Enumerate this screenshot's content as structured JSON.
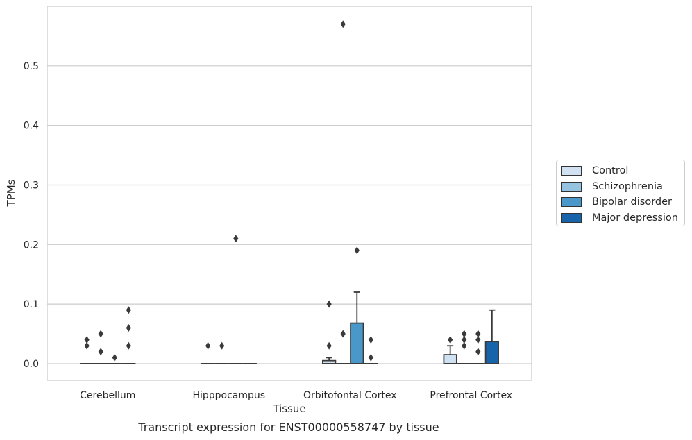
{
  "chart_data": {
    "type": "box",
    "caption": "Transcript expression for ENST00000558747 by tissue",
    "xlabel": "Tissue",
    "ylabel": "TPMs",
    "ylim": [
      -0.028,
      0.6
    ],
    "yticks": [
      "0.0",
      "0.1",
      "0.2",
      "0.3",
      "0.4",
      "0.5"
    ],
    "categories": [
      "Cerebellum",
      "Hipppocampus",
      "Orbitofontal Cortex",
      "Prefrontal Cortex"
    ],
    "grid": "horizontal",
    "legend_position": "right",
    "series": [
      {
        "name": "Control",
        "color": "#d0e1f2"
      },
      {
        "name": "Schizophrenia",
        "color": "#94c4df"
      },
      {
        "name": "Bipolar disorder",
        "color": "#4a98c9"
      },
      {
        "name": "Major depression",
        "color": "#1764ab"
      }
    ],
    "boxes": [
      [
        {
          "q1": 0,
          "median": 0,
          "q3": 0,
          "whisker_low": 0,
          "whisker_high": 0,
          "outliers": [
            0.03,
            0.04
          ]
        },
        {
          "q1": 0,
          "median": 0,
          "q3": 0,
          "whisker_low": 0,
          "whisker_high": 0,
          "outliers": [
            0.02,
            0.05
          ]
        },
        {
          "q1": 0,
          "median": 0,
          "q3": 0,
          "whisker_low": 0,
          "whisker_high": 0,
          "outliers": [
            0.01
          ]
        },
        {
          "q1": 0,
          "median": 0,
          "q3": 0,
          "whisker_low": 0,
          "whisker_high": 0,
          "outliers": [
            0.03,
            0.06,
            0.09
          ]
        }
      ],
      [
        {
          "q1": 0,
          "median": 0,
          "q3": 0,
          "whisker_low": 0,
          "whisker_high": 0,
          "outliers": [
            0.03
          ]
        },
        {
          "q1": 0,
          "median": 0,
          "q3": 0,
          "whisker_low": 0,
          "whisker_high": 0,
          "outliers": [
            0.03
          ]
        },
        {
          "q1": 0,
          "median": 0,
          "q3": 0,
          "whisker_low": 0,
          "whisker_high": 0,
          "outliers": [
            0.21
          ]
        },
        {
          "q1": 0,
          "median": 0,
          "q3": 0,
          "whisker_low": 0,
          "whisker_high": 0,
          "outliers": []
        }
      ],
      [
        {
          "q1": 0,
          "median": 0,
          "q3": 0.005,
          "whisker_low": 0,
          "whisker_high": 0.01,
          "outliers": [
            0.03,
            0.1
          ]
        },
        {
          "q1": 0,
          "median": 0,
          "q3": 0,
          "whisker_low": 0,
          "whisker_high": 0,
          "outliers": [
            0.05,
            0.57
          ]
        },
        {
          "q1": 0,
          "median": 0,
          "q3": 0.068,
          "whisker_low": 0,
          "whisker_high": 0.12,
          "outliers": [
            0.19
          ]
        },
        {
          "q1": 0,
          "median": 0,
          "q3": 0,
          "whisker_low": 0,
          "whisker_high": 0,
          "outliers": [
            0.01,
            0.04
          ]
        }
      ],
      [
        {
          "q1": 0,
          "median": 0,
          "q3": 0.015,
          "whisker_low": 0,
          "whisker_high": 0.03,
          "outliers": [
            0.04
          ]
        },
        {
          "q1": 0,
          "median": 0,
          "q3": 0,
          "whisker_low": 0,
          "whisker_high": 0,
          "outliers": [
            0.03,
            0.04,
            0.05
          ]
        },
        {
          "q1": 0,
          "median": 0,
          "q3": 0,
          "whisker_low": 0,
          "whisker_high": 0,
          "outliers": [
            0.02,
            0.04,
            0.05
          ]
        },
        {
          "q1": 0,
          "median": 0,
          "q3": 0.037,
          "whisker_low": 0,
          "whisker_high": 0.09,
          "outliers": []
        }
      ]
    ]
  }
}
